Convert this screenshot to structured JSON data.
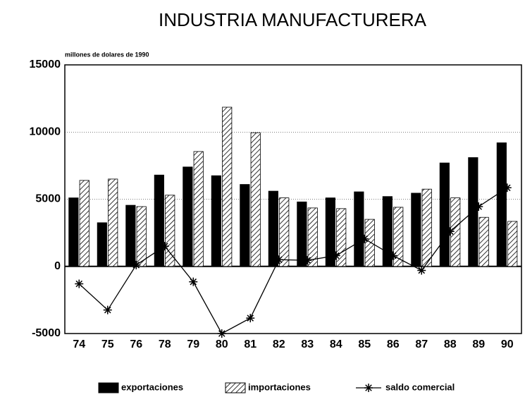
{
  "chart_data": {
    "type": "bar",
    "title": "INDUSTRIA MANUFACTURERA",
    "y_label": "millones de dolares de 1990",
    "categories": [
      "74",
      "75",
      "76",
      "78",
      "79",
      "80",
      "81",
      "82",
      "83",
      "84",
      "85",
      "86",
      "87",
      "88",
      "89",
      "90"
    ],
    "series": [
      {
        "name": "exportaciones",
        "color": "#000000",
        "type": "bar",
        "values": [
          5100,
          3250,
          4550,
          6800,
          7400,
          6750,
          6100,
          5600,
          4800,
          5100,
          5550,
          5200,
          5450,
          7700,
          8100,
          9200
        ]
      },
      {
        "name": "importaciones",
        "color": "#000000",
        "type": "bar",
        "hatch": true,
        "values": [
          6400,
          6500,
          4450,
          5300,
          8550,
          11850,
          9950,
          5100,
          4350,
          4300,
          3500,
          4400,
          5750,
          5100,
          3650,
          3350
        ]
      },
      {
        "name": "saldo comercial",
        "color": "#000000",
        "type": "line",
        "values": [
          -1300,
          -3250,
          100,
          1500,
          -1150,
          -5000,
          -3850,
          500,
          450,
          800,
          2050,
          800,
          -300,
          2600,
          4450,
          5850
        ]
      }
    ],
    "ylim": [
      -5000,
      15000
    ],
    "yticks": [
      -5000,
      0,
      5000,
      10000,
      15000
    ],
    "grid": true,
    "legend": "bottom"
  }
}
